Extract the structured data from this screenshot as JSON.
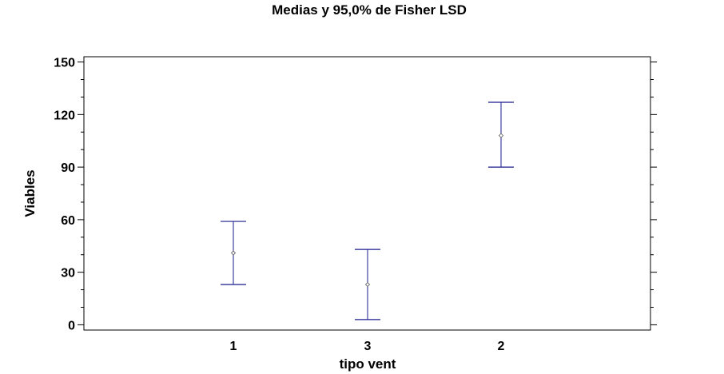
{
  "chart_data": {
    "type": "scatter",
    "title": "Medias y 95,0% de Fisher LSD",
    "xlabel": "tipo vent",
    "ylabel": "Viables",
    "categories": [
      "1",
      "3",
      "2"
    ],
    "series": [
      {
        "means": [
          41,
          23,
          108
        ],
        "lower": [
          23,
          3,
          90
        ],
        "upper": [
          59,
          43,
          127
        ]
      }
    ],
    "ylim": [
      -3,
      153
    ],
    "yticks": [
      0,
      30,
      60,
      90,
      120,
      150
    ],
    "grid": false,
    "legend": "none",
    "colors": {
      "interval": "#1a1a8c",
      "marker": "#555555",
      "axis": "#000000"
    }
  }
}
